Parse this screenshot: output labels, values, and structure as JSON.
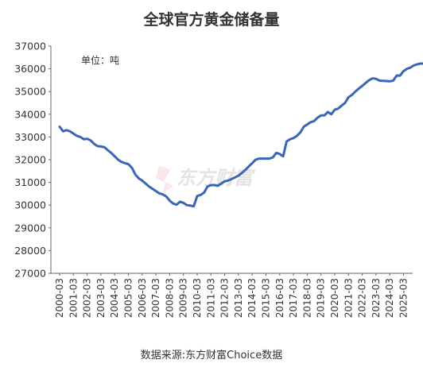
{
  "chart_data": {
    "type": "line",
    "title": "全球官方黄金储备量",
    "unit_label": "单位：吨",
    "source": "数据来源:东方财富Choice数据",
    "watermark": "东方财富",
    "xlabel": "",
    "ylabel": "",
    "ylim": [
      27000,
      37000
    ],
    "yticks": [
      27000,
      28000,
      29000,
      30000,
      31000,
      32000,
      33000,
      34000,
      35000,
      36000,
      37000
    ],
    "xticks": [
      "2000-03",
      "2001-03",
      "2002-03",
      "2003-03",
      "2004-03",
      "2005-03",
      "2006-03",
      "2007-03",
      "2008-03",
      "2009-03",
      "2010-03",
      "2011-03",
      "2012-03",
      "2013-03",
      "2014-03",
      "2015-03",
      "2016-03",
      "2017-03",
      "2018-03",
      "2019-03",
      "2020-03",
      "2021-03",
      "2022-03",
      "2023-03",
      "2024-03",
      "2025-03"
    ],
    "grid": false,
    "line_color": "#3a66b4",
    "series": [
      {
        "name": "",
        "points": [
          [
            "2000-03",
            33450
          ],
          [
            "2000-06",
            33250
          ],
          [
            "2000-09",
            33300
          ],
          [
            "2000-12",
            33250
          ],
          [
            "2001-03",
            33150
          ],
          [
            "2001-06",
            33050
          ],
          [
            "2001-09",
            33000
          ],
          [
            "2001-12",
            32900
          ],
          [
            "2002-03",
            32920
          ],
          [
            "2002-06",
            32850
          ],
          [
            "2002-09",
            32700
          ],
          [
            "2002-12",
            32600
          ],
          [
            "2003-03",
            32580
          ],
          [
            "2003-06",
            32550
          ],
          [
            "2003-09",
            32420
          ],
          [
            "2003-12",
            32300
          ],
          [
            "2004-03",
            32150
          ],
          [
            "2004-06",
            32000
          ],
          [
            "2004-09",
            31900
          ],
          [
            "2004-12",
            31850
          ],
          [
            "2005-03",
            31800
          ],
          [
            "2005-06",
            31650
          ],
          [
            "2005-09",
            31350
          ],
          [
            "2005-12",
            31180
          ],
          [
            "2006-03",
            31080
          ],
          [
            "2006-06",
            30950
          ],
          [
            "2006-09",
            30820
          ],
          [
            "2006-12",
            30720
          ],
          [
            "2007-03",
            30620
          ],
          [
            "2007-06",
            30520
          ],
          [
            "2007-09",
            30470
          ],
          [
            "2007-12",
            30380
          ],
          [
            "2008-03",
            30200
          ],
          [
            "2008-06",
            30070
          ],
          [
            "2008-09",
            30020
          ],
          [
            "2008-12",
            30150
          ],
          [
            "2009-03",
            30100
          ],
          [
            "2009-06",
            30000
          ],
          [
            "2009-09",
            29980
          ],
          [
            "2009-12",
            29950
          ],
          [
            "2010-03",
            30400
          ],
          [
            "2010-06",
            30450
          ],
          [
            "2010-09",
            30550
          ],
          [
            "2010-12",
            30820
          ],
          [
            "2011-03",
            30880
          ],
          [
            "2011-06",
            30880
          ],
          [
            "2011-09",
            30850
          ],
          [
            "2011-12",
            30950
          ],
          [
            "2012-03",
            31050
          ],
          [
            "2012-06",
            31080
          ],
          [
            "2012-09",
            31150
          ],
          [
            "2012-12",
            31220
          ],
          [
            "2013-03",
            31300
          ],
          [
            "2013-06",
            31420
          ],
          [
            "2013-09",
            31550
          ],
          [
            "2013-12",
            31700
          ],
          [
            "2014-03",
            31850
          ],
          [
            "2014-06",
            32000
          ],
          [
            "2014-09",
            32050
          ],
          [
            "2014-12",
            32050
          ],
          [
            "2015-03",
            32050
          ],
          [
            "2015-06",
            32050
          ],
          [
            "2015-09",
            32100
          ],
          [
            "2015-12",
            32300
          ],
          [
            "2016-03",
            32250
          ],
          [
            "2016-06",
            32150
          ],
          [
            "2016-09",
            32800
          ],
          [
            "2016-12",
            32900
          ],
          [
            "2017-03",
            32950
          ],
          [
            "2017-06",
            33050
          ],
          [
            "2017-09",
            33200
          ],
          [
            "2017-12",
            33450
          ],
          [
            "2018-03",
            33550
          ],
          [
            "2018-06",
            33650
          ],
          [
            "2018-09",
            33700
          ],
          [
            "2018-12",
            33850
          ],
          [
            "2019-03",
            33950
          ],
          [
            "2019-06",
            33950
          ],
          [
            "2019-09",
            34100
          ],
          [
            "2019-12",
            34000
          ],
          [
            "2020-03",
            34200
          ],
          [
            "2020-06",
            34250
          ],
          [
            "2020-09",
            34380
          ],
          [
            "2020-12",
            34500
          ],
          [
            "2021-03",
            34750
          ],
          [
            "2021-06",
            34850
          ],
          [
            "2021-09",
            35000
          ],
          [
            "2021-12",
            35130
          ],
          [
            "2022-03",
            35250
          ],
          [
            "2022-06",
            35380
          ],
          [
            "2022-09",
            35500
          ],
          [
            "2022-12",
            35580
          ],
          [
            "2023-03",
            35560
          ],
          [
            "2023-06",
            35480
          ],
          [
            "2023-09",
            35470
          ],
          [
            "2023-12",
            35460
          ],
          [
            "2024-03",
            35450
          ],
          [
            "2024-06",
            35480
          ],
          [
            "2024-09",
            35700
          ],
          [
            "2024-12",
            35700
          ],
          [
            "2025-03",
            35900
          ],
          [
            "2025-06",
            36000
          ],
          [
            "2025-09",
            36050
          ],
          [
            "2025-12",
            36150
          ],
          [
            "2026-03",
            36200
          ],
          [
            "2026-06",
            36230
          ],
          [
            "2026-09",
            36230
          ]
        ]
      }
    ]
  }
}
